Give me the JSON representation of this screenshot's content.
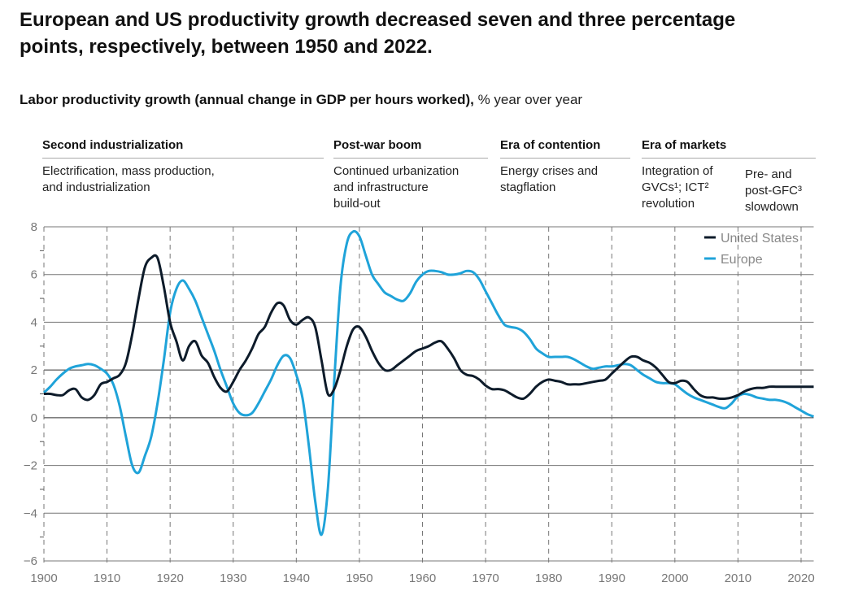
{
  "title": "European and US productivity growth decreased seven and three percentage points, respectively, between 1950 and 2022.",
  "subtitle_bold": "Labor productivity growth (annual change in GDP per hours worked),",
  "subtitle_unit": " % year over year",
  "eras": [
    {
      "name": "Second industrialization",
      "desc": [
        "Electrification, mass production,",
        "and industrialization"
      ]
    },
    {
      "name": "Post-war boom",
      "desc": [
        "Continued urbanization",
        "and infrastructure",
        "build-out"
      ]
    },
    {
      "name": "Era of contention",
      "desc": [
        "Energy crises and",
        "stagflation"
      ]
    },
    {
      "name": "Era of markets",
      "desc": [
        "Integration of",
        "GVCs¹; ICT²",
        "revolution"
      ]
    }
  ],
  "era_sub": {
    "desc": [
      "Pre- and",
      "post-GFC³",
      "slowdown"
    ]
  },
  "chart_data": {
    "type": "line",
    "title": "Labor productivity growth (annual change in GDP per hours worked), % year over year",
    "xlabel": "",
    "ylabel": "% year over year",
    "xlim": [
      1900,
      2022
    ],
    "ylim": [
      -6,
      8
    ],
    "yticks": [
      8,
      6,
      4,
      2,
      0,
      -2,
      -4,
      -6
    ],
    "xticks": [
      1900,
      1910,
      1920,
      1930,
      1940,
      1950,
      1960,
      1970,
      1980,
      1990,
      2000,
      2010,
      2020
    ],
    "grid": "horizontal solid at labeled ticks; vertical dashed at decades",
    "legend_position": "top-right",
    "colors": {
      "United States": "#0d1b2a",
      "Europe": "#1fa3d9"
    },
    "x": [
      1900,
      1901,
      1902,
      1903,
      1904,
      1905,
      1906,
      1907,
      1908,
      1909,
      1910,
      1911,
      1912,
      1913,
      1914,
      1915,
      1916,
      1917,
      1918,
      1919,
      1920,
      1921,
      1922,
      1923,
      1924,
      1925,
      1926,
      1927,
      1928,
      1929,
      1930,
      1931,
      1932,
      1933,
      1934,
      1935,
      1936,
      1937,
      1938,
      1939,
      1940,
      1941,
      1942,
      1943,
      1944,
      1945,
      1946,
      1947,
      1948,
      1949,
      1950,
      1951,
      1952,
      1953,
      1954,
      1955,
      1956,
      1957,
      1958,
      1959,
      1960,
      1961,
      1962,
      1963,
      1964,
      1965,
      1966,
      1967,
      1968,
      1969,
      1970,
      1971,
      1972,
      1973,
      1974,
      1975,
      1976,
      1977,
      1978,
      1979,
      1980,
      1981,
      1982,
      1983,
      1984,
      1985,
      1986,
      1987,
      1988,
      1989,
      1990,
      1991,
      1992,
      1993,
      1994,
      1995,
      1996,
      1997,
      1998,
      1999,
      2000,
      2001,
      2002,
      2003,
      2004,
      2005,
      2006,
      2007,
      2008,
      2009,
      2010,
      2011,
      2012,
      2013,
      2014,
      2015,
      2016,
      2017,
      2018,
      2019,
      2020,
      2021,
      2022
    ],
    "series": [
      {
        "name": "United States",
        "values": [
          1.0,
          1.0,
          0.95,
          0.95,
          1.15,
          1.2,
          0.85,
          0.75,
          0.95,
          1.4,
          1.5,
          1.65,
          1.8,
          2.3,
          3.5,
          5.0,
          6.3,
          6.7,
          6.7,
          5.5,
          4.0,
          3.2,
          2.4,
          3.0,
          3.2,
          2.6,
          2.3,
          1.7,
          1.25,
          1.1,
          1.5,
          2.0,
          2.4,
          2.9,
          3.5,
          3.8,
          4.4,
          4.8,
          4.7,
          4.1,
          3.9,
          4.1,
          4.2,
          3.8,
          2.4,
          1.0,
          1.2,
          2.0,
          3.0,
          3.7,
          3.8,
          3.4,
          2.8,
          2.3,
          2.0,
          2.0,
          2.2,
          2.4,
          2.6,
          2.8,
          2.9,
          3.0,
          3.15,
          3.2,
          2.9,
          2.5,
          2.0,
          1.8,
          1.75,
          1.6,
          1.35,
          1.2,
          1.2,
          1.15,
          1.0,
          0.85,
          0.8,
          1.0,
          1.3,
          1.5,
          1.6,
          1.55,
          1.5,
          1.4,
          1.4,
          1.4,
          1.45,
          1.5,
          1.55,
          1.6,
          1.85,
          2.1,
          2.35,
          2.55,
          2.55,
          2.4,
          2.3,
          2.1,
          1.8,
          1.5,
          1.45,
          1.55,
          1.5,
          1.2,
          0.95,
          0.85,
          0.85,
          0.8,
          0.8,
          0.85,
          0.95,
          1.1,
          1.2,
          1.25,
          1.25,
          1.3,
          1.3,
          1.3,
          1.3,
          1.3,
          1.3,
          1.3,
          1.3
        ]
      },
      {
        "name": "Europe",
        "values": [
          1.05,
          1.3,
          1.6,
          1.85,
          2.05,
          2.15,
          2.2,
          2.25,
          2.2,
          2.05,
          1.85,
          1.4,
          0.5,
          -0.8,
          -2.0,
          -2.3,
          -1.6,
          -0.8,
          0.6,
          2.4,
          4.4,
          5.4,
          5.75,
          5.4,
          4.9,
          4.2,
          3.5,
          2.8,
          2.0,
          1.3,
          0.6,
          0.2,
          0.1,
          0.2,
          0.6,
          1.1,
          1.6,
          2.2,
          2.6,
          2.5,
          1.8,
          0.8,
          -1.2,
          -3.5,
          -4.9,
          -3.0,
          1.5,
          5.5,
          7.3,
          7.8,
          7.6,
          6.8,
          6.0,
          5.6,
          5.25,
          5.1,
          4.95,
          4.9,
          5.2,
          5.7,
          6.0,
          6.15,
          6.15,
          6.1,
          6.0,
          6.0,
          6.05,
          6.15,
          6.1,
          5.8,
          5.3,
          4.8,
          4.3,
          3.9,
          3.8,
          3.75,
          3.6,
          3.3,
          2.9,
          2.7,
          2.55,
          2.55,
          2.55,
          2.55,
          2.45,
          2.3,
          2.15,
          2.05,
          2.1,
          2.15,
          2.15,
          2.2,
          2.25,
          2.2,
          2.0,
          1.8,
          1.65,
          1.5,
          1.45,
          1.45,
          1.4,
          1.2,
          1.0,
          0.85,
          0.75,
          0.65,
          0.55,
          0.45,
          0.4,
          0.6,
          0.9,
          1.0,
          0.95,
          0.85,
          0.8,
          0.75,
          0.75,
          0.7,
          0.6,
          0.45,
          0.3,
          0.15,
          0.05
        ]
      }
    ]
  }
}
